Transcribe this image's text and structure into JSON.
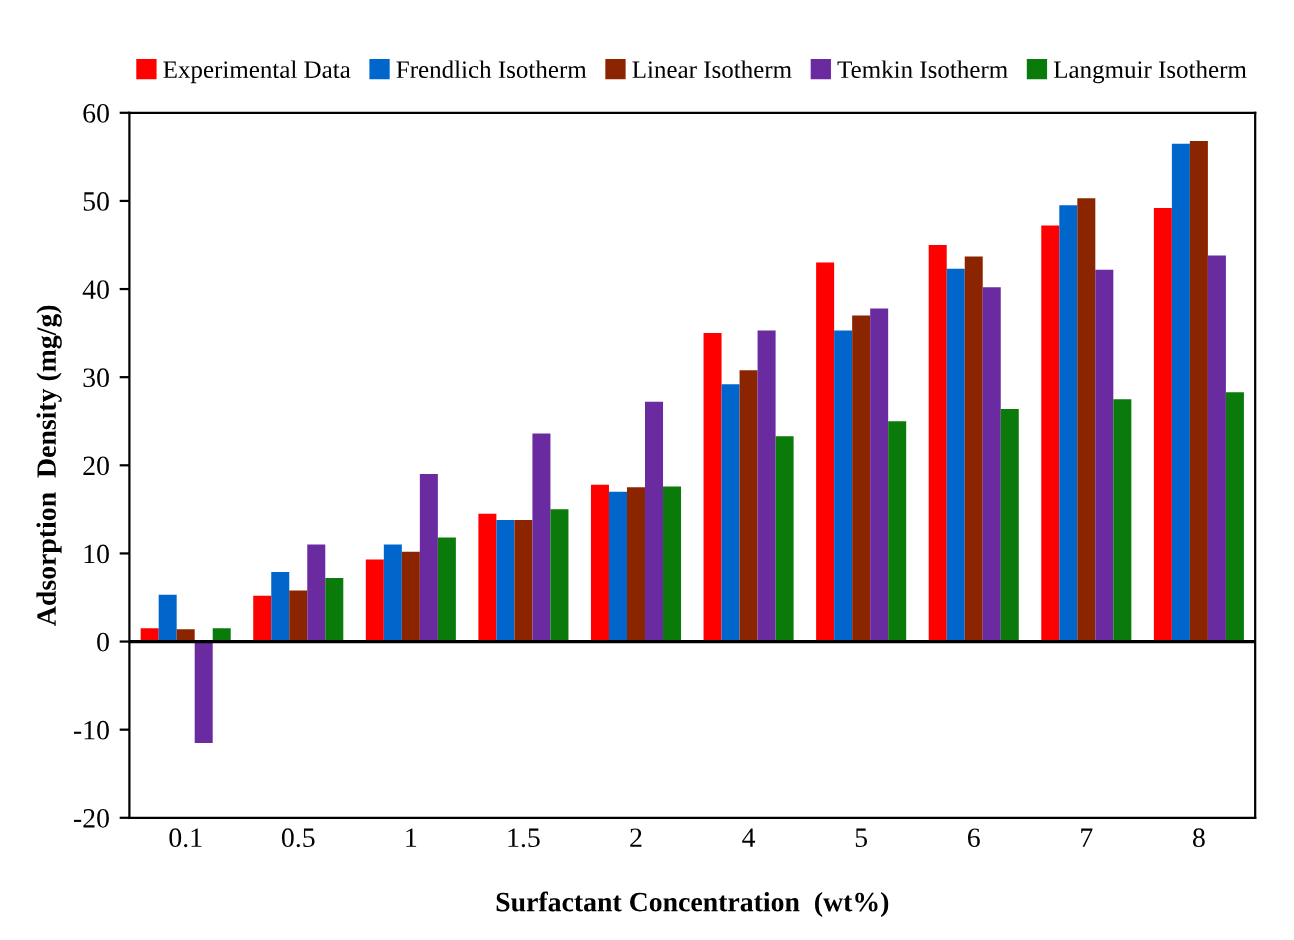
{
  "chart_data": {
    "type": "bar",
    "xlabel": "Surfactant Concentration  (wt%)",
    "ylabel": "Adsorption  Density (mg/g)",
    "categories": [
      "0.1",
      "0.5",
      "1",
      "1.5",
      "2",
      "4",
      "5",
      "6",
      "7",
      "8"
    ],
    "series": [
      {
        "name": "Experimental Data",
        "color": "#ff0000",
        "values": [
          1.5,
          5.2,
          9.3,
          14.5,
          17.8,
          35,
          43,
          45,
          47.2,
          49.2
        ]
      },
      {
        "name": "Frendlich Isotherm",
        "color": "#0066cc",
        "values": [
          5.3,
          7.9,
          11,
          13.8,
          17,
          29.2,
          35.3,
          42.3,
          49.5,
          56.5
        ]
      },
      {
        "name": "Linear Isotherm",
        "color": "#8b2500",
        "values": [
          1.4,
          5.8,
          10.2,
          13.8,
          17.5,
          30.8,
          37,
          43.7,
          50.3,
          56.8
        ]
      },
      {
        "name": "Temkin Isotherm",
        "color": "#6a2aa0",
        "values": [
          -11.5,
          11,
          19,
          23.6,
          27.2,
          35.3,
          37.8,
          40.2,
          42.2,
          43.8
        ]
      },
      {
        "name": "Langmuir Isotherm",
        "color": "#0a7a0a",
        "values": [
          1.5,
          7.2,
          11.8,
          15,
          17.6,
          23.3,
          25,
          26.4,
          27.5,
          28.3
        ]
      }
    ],
    "ylim": [
      -20,
      60
    ],
    "yticks": [
      -20,
      -10,
      0,
      10,
      20,
      30,
      40,
      50,
      60
    ],
    "ref_lines": [
      {
        "axis": "y",
        "value": 0,
        "color": "#000000"
      }
    ],
    "grid": false,
    "legend": "top"
  }
}
